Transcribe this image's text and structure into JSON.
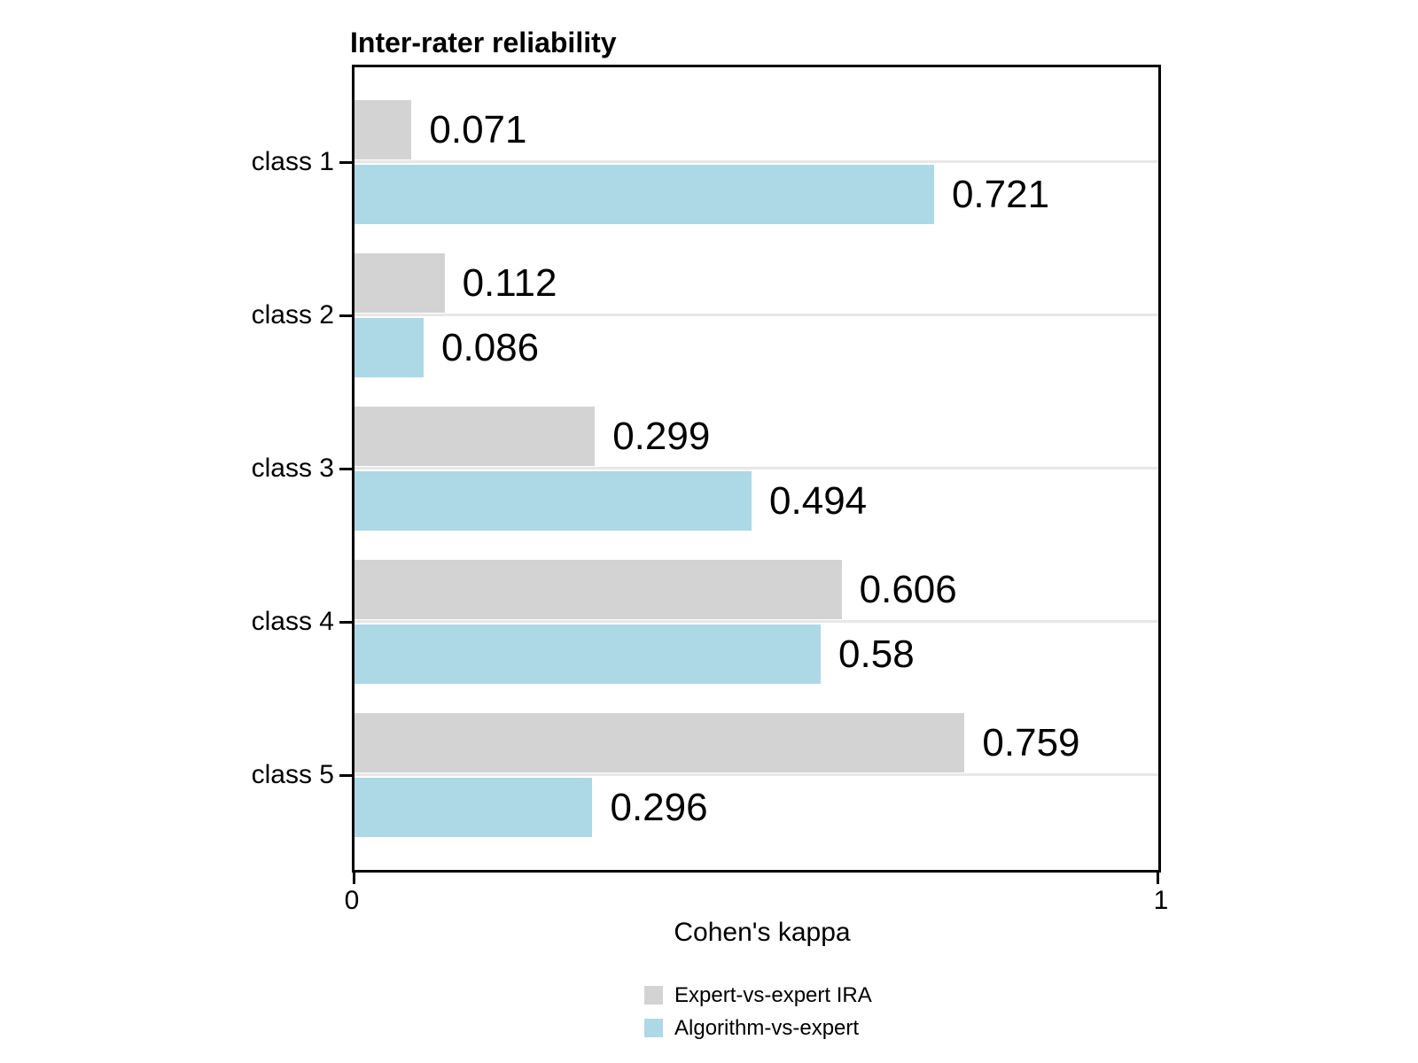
{
  "title": "Inter-rater reliability",
  "chart_data": {
    "type": "bar",
    "orientation": "horizontal",
    "title": "Inter-rater reliability",
    "xlabel": "Cohen's kappa",
    "ylabel": "",
    "xlim": [
      0,
      1
    ],
    "x_tick_labels": [
      "0",
      "1"
    ],
    "grid": "horizontal line at each category tick",
    "legend_position": "bottom-center",
    "categories": [
      "class 1",
      "class 2",
      "class 3",
      "class 4",
      "class 5"
    ],
    "series": [
      {
        "name": "Expert-vs-expert IRA",
        "color": "#d3d3d3",
        "values": [
          0.071,
          0.112,
          0.299,
          0.606,
          0.759
        ],
        "labels": [
          "0.071",
          "0.112",
          "0.299",
          "0.606",
          "0.759"
        ]
      },
      {
        "name": "Algorithm-vs-expert",
        "color": "#add8e6",
        "values": [
          0.721,
          0.086,
          0.494,
          0.58,
          0.296
        ],
        "labels": [
          "0.721",
          "0.086",
          "0.494",
          "0.58",
          "0.296"
        ]
      }
    ],
    "colors": {
      "bar_gray": "#d3d3d3",
      "bar_blue": "#add8e6",
      "gridline": "#e7e7e7",
      "frame": "#000000",
      "text": "#000000"
    }
  }
}
